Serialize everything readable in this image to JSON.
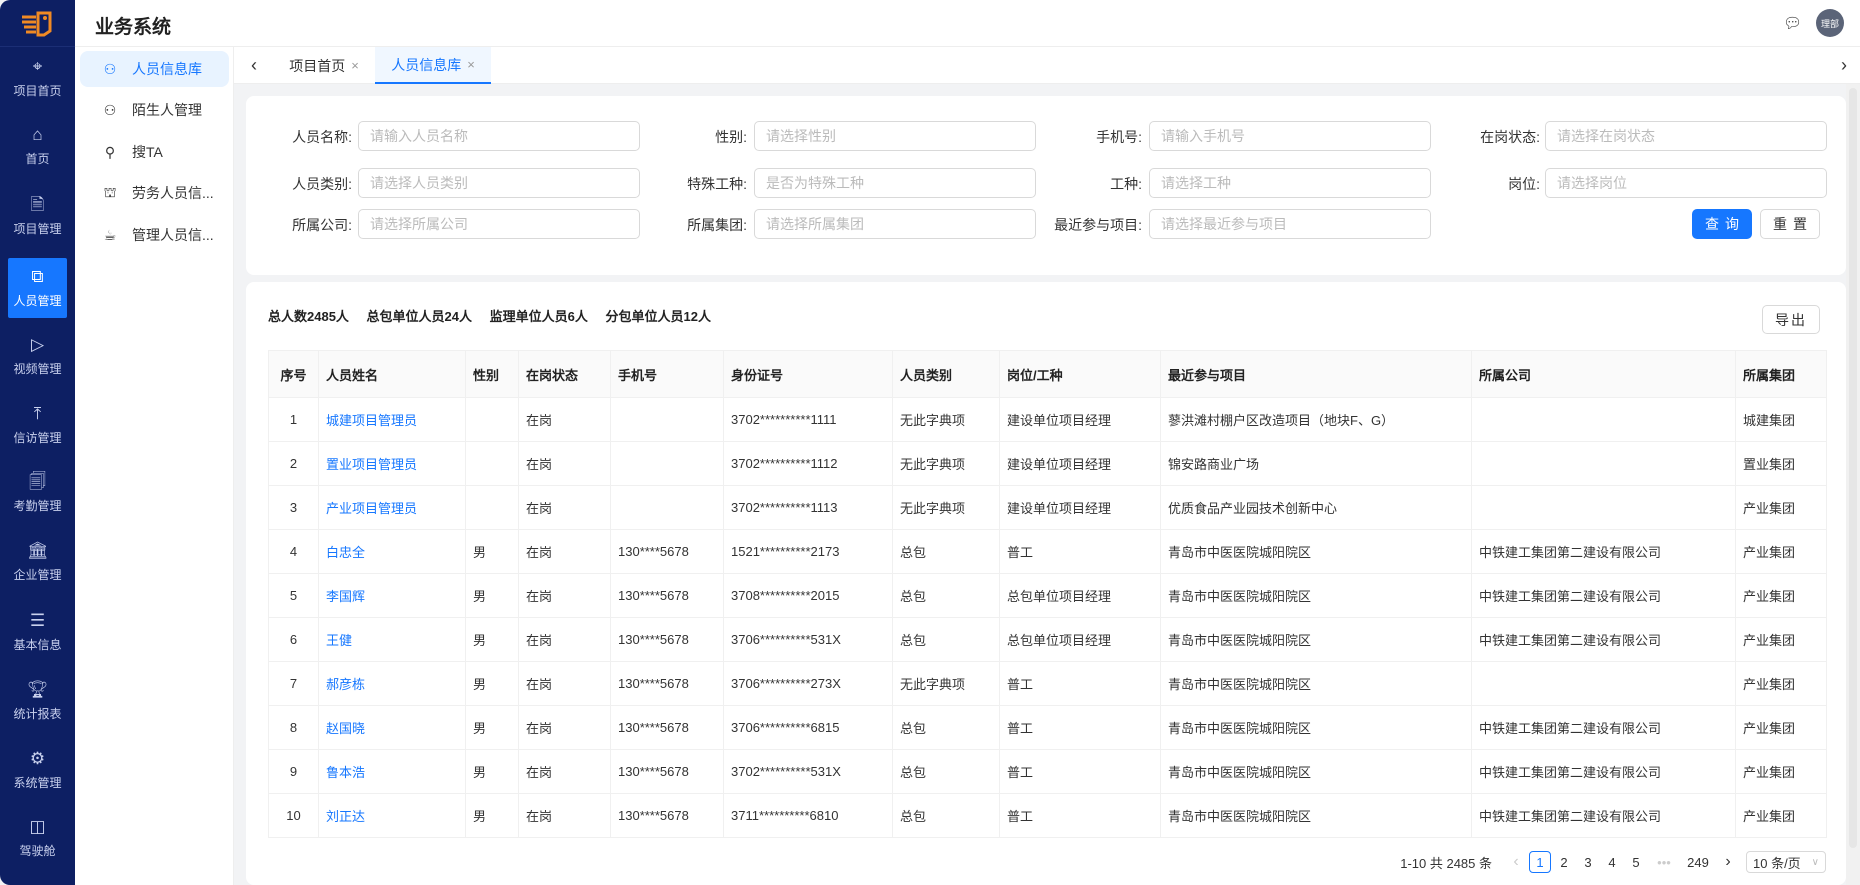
{
  "app": {
    "title": "业务系统",
    "avatar_text": "理部",
    "message_icon": "chat-icon",
    "logo_icon": "app-logo"
  },
  "colors": {
    "nav_bg": "#0d1f63",
    "accent": "#1677ff"
  },
  "nav": {
    "items": [
      {
        "label": "项目首页",
        "icon": "target-icon"
      },
      {
        "label": "首页",
        "icon": "home-icon"
      },
      {
        "label": "项目管理",
        "icon": "document-user-icon"
      },
      {
        "label": "人员管理",
        "icon": "org-chart-icon",
        "active": true
      },
      {
        "label": "视频管理",
        "icon": "play-circle-icon"
      },
      {
        "label": "信访管理",
        "icon": "upload-icon"
      },
      {
        "label": "考勤管理",
        "icon": "file-plus-minus-icon"
      },
      {
        "label": "企业管理",
        "icon": "bank-icon"
      },
      {
        "label": "基本信息",
        "icon": "list-icon"
      },
      {
        "label": "统计报表",
        "icon": "trophy-icon"
      },
      {
        "label": "系统管理",
        "icon": "gear-icon"
      },
      {
        "label": "驾驶舱",
        "icon": "dashboard-icon"
      }
    ]
  },
  "submenu": {
    "items": [
      {
        "label": "人员信息库",
        "icon": "users-icon",
        "active": true
      },
      {
        "label": "陌生人管理",
        "icon": "users-icon"
      },
      {
        "label": "搜TA",
        "icon": "search-icon"
      },
      {
        "label": "劳务人员信...",
        "icon": "toolbox-icon"
      },
      {
        "label": "管理人员信...",
        "icon": "cup-icon"
      }
    ]
  },
  "tabs": {
    "items": [
      {
        "label": "项目首页",
        "active": false
      },
      {
        "label": "人员信息库",
        "active": true
      }
    ],
    "close": "×",
    "prev": "‹",
    "next": "›"
  },
  "filter": {
    "fields": [
      {
        "label": "人员名称:",
        "placeholder": "请输入人员名称"
      },
      {
        "label": "性别:",
        "placeholder": "请选择性别"
      },
      {
        "label": "手机号:",
        "placeholder": "请输入手机号"
      },
      {
        "label": "在岗状态:",
        "placeholder": "请选择在岗状态"
      },
      {
        "label": "人员类别:",
        "placeholder": "请选择人员类别"
      },
      {
        "label": "特殊工种:",
        "placeholder": "是否为特殊工种"
      },
      {
        "label": "工种:",
        "placeholder": "请选择工种"
      },
      {
        "label": "岗位:",
        "placeholder": "请选择岗位"
      },
      {
        "label": "所属公司:",
        "placeholder": "请选择所属公司"
      },
      {
        "label": "所属集团:",
        "placeholder": "请选择所属集团"
      },
      {
        "label": "最近参与项目:",
        "placeholder": "请选择最近参与项目"
      }
    ],
    "query_label": "查询",
    "reset_label": "重置"
  },
  "summary": {
    "total": "总人数2485人",
    "general": "总包单位人员24人",
    "supervision": "监理单位人员6人",
    "sub": "分包单位人员12人"
  },
  "export_label": "导出",
  "table": {
    "columns": [
      "序号",
      "人员姓名",
      "性别",
      "在岗状态",
      "手机号",
      "身份证号",
      "人员类别",
      "岗位/工种",
      "最近参与项目",
      "所属公司",
      "所属集团"
    ],
    "rows": [
      [
        "1",
        "城建项目管理员",
        "",
        "在岗",
        "",
        "3702**********1111",
        "无此字典项",
        "建设单位项目经理",
        "蓼洪滩村棚户区改造项目（地块F、G）",
        "",
        "城建集团"
      ],
      [
        "2",
        "置业项目管理员",
        "",
        "在岗",
        "",
        "3702**********1112",
        "无此字典项",
        "建设单位项目经理",
        "锦安路商业广场",
        "",
        "置业集团"
      ],
      [
        "3",
        "产业项目管理员",
        "",
        "在岗",
        "",
        "3702**********1113",
        "无此字典项",
        "建设单位项目经理",
        "优质食品产业园技术创新中心",
        "",
        "产业集团"
      ],
      [
        "4",
        "白忠全",
        "男",
        "在岗",
        "130****5678",
        "1521**********2173",
        "总包",
        "普工",
        "青岛市中医医院城阳院区",
        "中铁建工集团第二建设有限公司",
        "产业集团"
      ],
      [
        "5",
        "李国辉",
        "男",
        "在岗",
        "130****5678",
        "3708**********2015",
        "总包",
        "总包单位项目经理",
        "青岛市中医医院城阳院区",
        "中铁建工集团第二建设有限公司",
        "产业集团"
      ],
      [
        "6",
        "王健",
        "男",
        "在岗",
        "130****5678",
        "3706**********531X",
        "总包",
        "总包单位项目经理",
        "青岛市中医医院城阳院区",
        "中铁建工集团第二建设有限公司",
        "产业集团"
      ],
      [
        "7",
        "郝彦栋",
        "男",
        "在岗",
        "130****5678",
        "3706**********273X",
        "无此字典项",
        "普工",
        "青岛市中医医院城阳院区",
        "",
        "产业集团"
      ],
      [
        "8",
        "赵国晓",
        "男",
        "在岗",
        "130****5678",
        "3706**********6815",
        "总包",
        "普工",
        "青岛市中医医院城阳院区",
        "中铁建工集团第二建设有限公司",
        "产业集团"
      ],
      [
        "9",
        "鲁本浩",
        "男",
        "在岗",
        "130****5678",
        "3702**********531X",
        "总包",
        "普工",
        "青岛市中医医院城阳院区",
        "中铁建工集团第二建设有限公司",
        "产业集团"
      ],
      [
        "10",
        "刘正达",
        "男",
        "在岗",
        "130****5678",
        "3711**********6810",
        "总包",
        "普工",
        "青岛市中医医院城阳院区",
        "中铁建工集团第二建设有限公司",
        "产业集团"
      ]
    ]
  },
  "pagination": {
    "range_text": "1-10 共 2485 条",
    "pages": [
      "1",
      "2",
      "3",
      "4",
      "5"
    ],
    "ellipsis": "•••",
    "last": "249",
    "current": "1",
    "page_size": "10 条/页",
    "prev": "‹",
    "next": "›"
  }
}
